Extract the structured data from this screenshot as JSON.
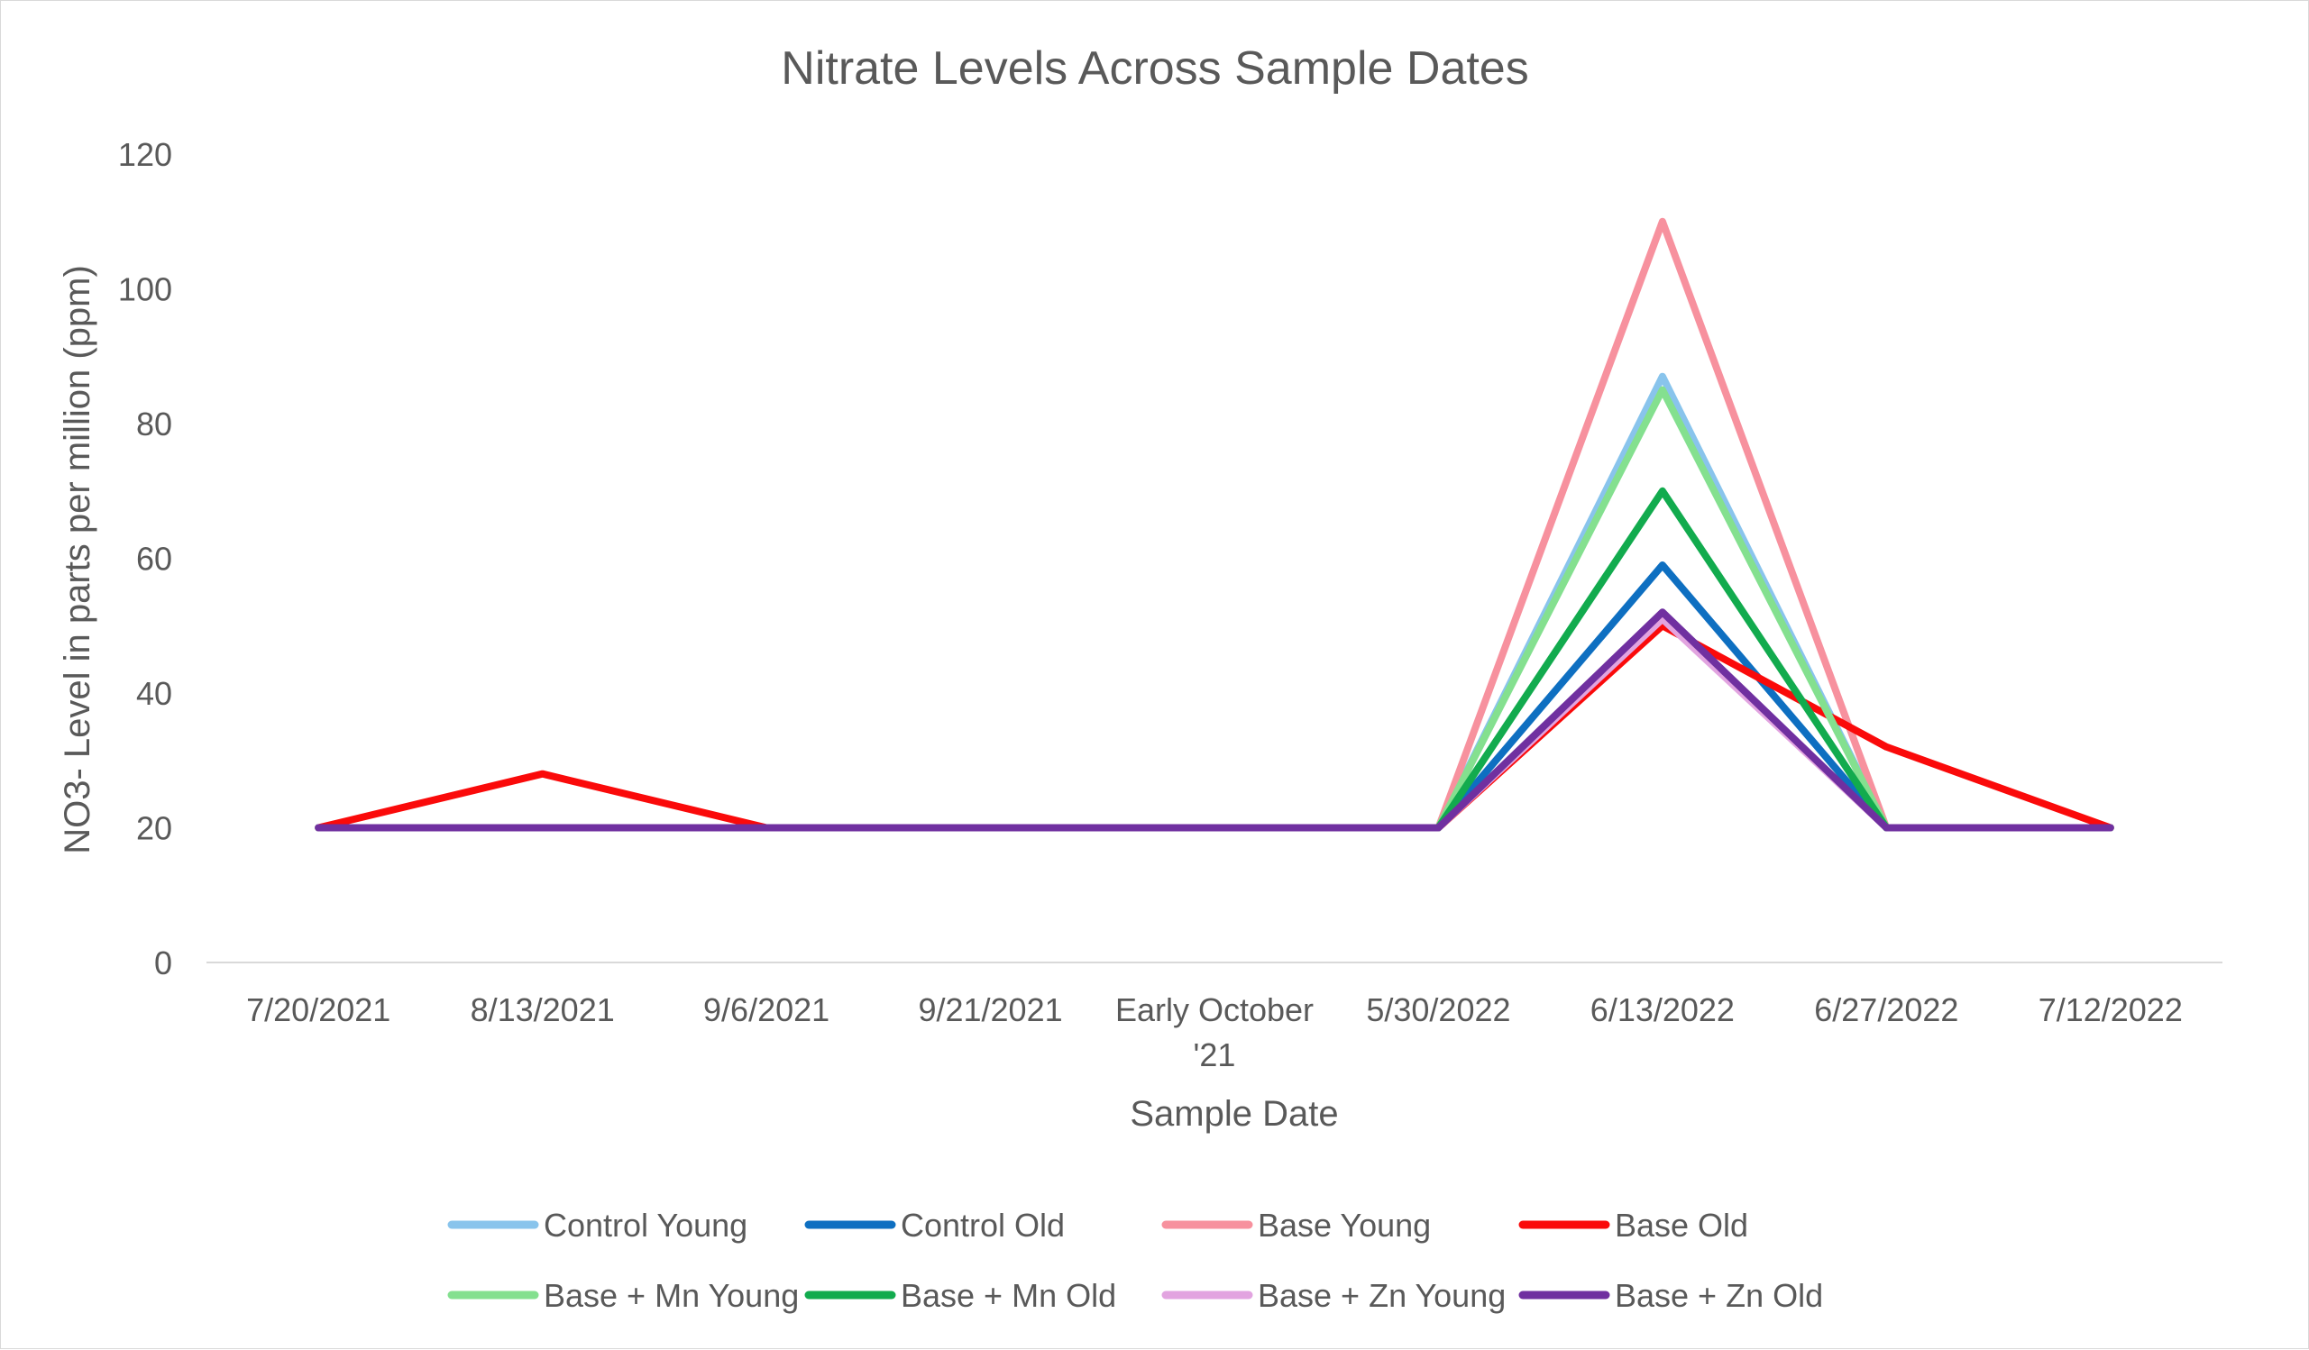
{
  "chart_data": {
    "type": "line",
    "title": "Nitrate Levels Across Sample Dates",
    "xlabel": "Sample Date",
    "ylabel": "NO3- Level in parts per million (ppm)",
    "ylim": [
      0,
      120
    ],
    "yticks": [
      0,
      20,
      40,
      60,
      80,
      100,
      120
    ],
    "grid": false,
    "legend_position": "bottom",
    "categories": [
      "7/20/2021",
      "8/13/2021",
      "9/6/2021",
      "9/21/2021",
      "Early October '21",
      "5/30/2022",
      "6/13/2022",
      "6/27/2022",
      "7/12/2022"
    ],
    "series": [
      {
        "name": "Control Young",
        "color": "#89c4ec",
        "values": [
          20,
          20,
          20,
          20,
          20,
          20,
          87,
          20,
          20
        ]
      },
      {
        "name": "Control Old",
        "color": "#0e6fc1",
        "values": [
          20,
          20,
          20,
          20,
          20,
          20,
          59,
          20,
          20
        ]
      },
      {
        "name": "Base Young",
        "color": "#f7919e",
        "values": [
          20,
          20,
          20,
          20,
          20,
          20,
          110,
          20,
          20
        ]
      },
      {
        "name": "Base Old",
        "color": "#fa0a0a",
        "values": [
          20,
          28,
          20,
          20,
          20,
          20,
          50,
          32,
          20
        ]
      },
      {
        "name": "Base + Mn Young",
        "color": "#84e08f",
        "values": [
          20,
          20,
          20,
          20,
          20,
          20,
          85,
          20,
          20
        ]
      },
      {
        "name": "Base + Mn Old",
        "color": "#12ab4e",
        "values": [
          20,
          20,
          20,
          20,
          20,
          20,
          70,
          20,
          20
        ]
      },
      {
        "name": "Base + Zn Young",
        "color": "#e2a4e0",
        "values": [
          20,
          20,
          20,
          20,
          20,
          20,
          51,
          20,
          20
        ]
      },
      {
        "name": "Base + Zn Old",
        "color": "#7030a0",
        "values": [
          20,
          20,
          20,
          20,
          20,
          20,
          52,
          20,
          20
        ]
      }
    ]
  }
}
